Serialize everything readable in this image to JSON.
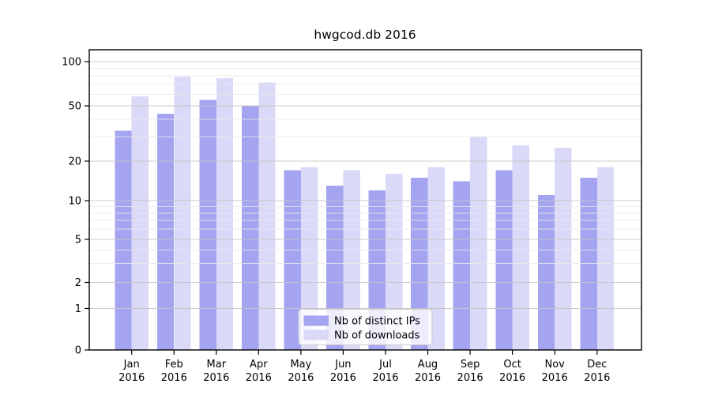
{
  "figure": {
    "title": "hwgcod.db 2016",
    "background": "#ffffff"
  },
  "chart_data": {
    "type": "bar",
    "title": "hwgcod.db 2016",
    "categories": [
      "Jan",
      "Feb",
      "Mar",
      "Apr",
      "May",
      "Jun",
      "Jul",
      "Aug",
      "Sep",
      "Oct",
      "Nov",
      "Dec"
    ],
    "category_year": "2016",
    "series": [
      {
        "name": "Nb of distinct IPs",
        "color": "#a4a4f0",
        "values": [
          33,
          44,
          55,
          50,
          17,
          13,
          12,
          15,
          14,
          17,
          11,
          15
        ]
      },
      {
        "name": "Nb of downloads",
        "color": "#dadaf8",
        "values": [
          58,
          79,
          77,
          72,
          18,
          17,
          16,
          18,
          30,
          26,
          25,
          18
        ]
      }
    ],
    "xlabel": "",
    "ylabel": "",
    "y_scale": "log-like (1-2-5 major ticks, linear segment down to 0)",
    "y_major_ticks": [
      100,
      50,
      20,
      10,
      5,
      2,
      1,
      0
    ],
    "y_minor_gridlines": [
      3,
      4,
      6,
      7,
      8,
      9,
      30,
      40,
      60,
      70,
      80,
      90
    ],
    "ylim": [
      0,
      120
    ],
    "grid": true,
    "legend": {
      "position": "lower-center",
      "entries": [
        "Nb of distinct IPs",
        "Nb of downloads"
      ]
    },
    "colors": {
      "major_grid": "#c6c6c6",
      "minor_grid": "#e9e9e9",
      "axis": "#000000",
      "legend_border": "#cccccc",
      "legend_fill": "rgba(255,255,255,0.8)"
    }
  }
}
